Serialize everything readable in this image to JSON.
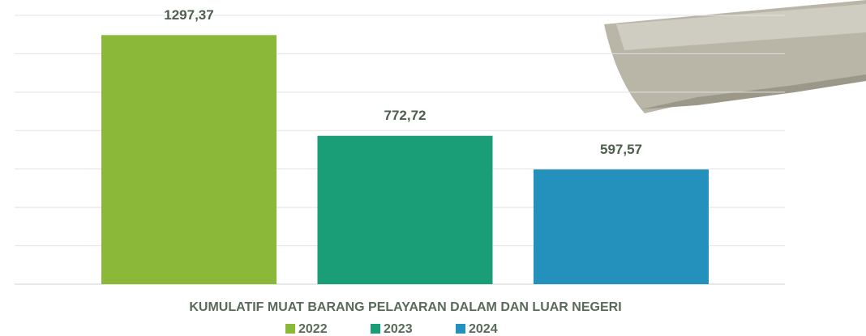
{
  "chart_data": {
    "type": "bar",
    "categories": [
      "KUMULATIF MUAT BARANG PELAYARAN DALAM DAN LUAR NEGERI"
    ],
    "series": [
      {
        "name": "2022",
        "color": "#8cb83a",
        "values": [
          1297.37
        ],
        "value_labels": [
          "1297,37"
        ]
      },
      {
        "name": "2023",
        "color": "#1a9e78",
        "values": [
          772.72
        ],
        "value_labels": [
          "772,72"
        ]
      },
      {
        "name": "2024",
        "color": "#2490bc",
        "values": [
          597.57
        ],
        "value_labels": [
          "597,57"
        ]
      }
    ],
    "ylim": [
      0,
      1400
    ],
    "yticks": [
      0,
      200,
      400,
      600,
      800,
      1000,
      1200,
      1400
    ],
    "grid": true,
    "legend": "bottom"
  }
}
